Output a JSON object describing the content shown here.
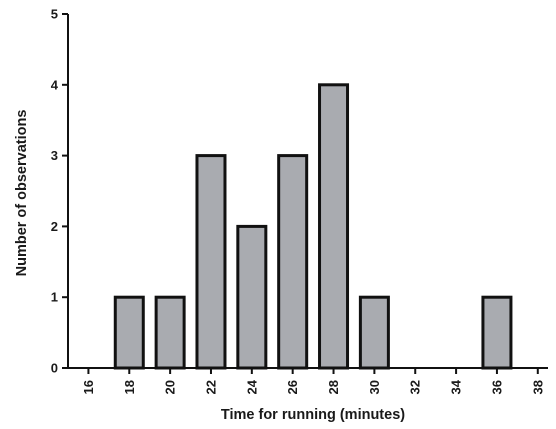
{
  "chart_data": {
    "type": "bar",
    "title": "",
    "xlabel": "Time for running (minutes)",
    "ylabel": "Number of observations",
    "x_ticks": [
      "16",
      "18",
      "20",
      "22",
      "24",
      "26",
      "28",
      "30",
      "32",
      "34",
      "36",
      "38"
    ],
    "y_ticks": [
      "0",
      "1",
      "2",
      "3",
      "4",
      "5"
    ],
    "xlim": [
      15,
      38.5
    ],
    "ylim": [
      0,
      5
    ],
    "grid": false,
    "categories": [
      "18",
      "20",
      "22",
      "24",
      "26",
      "28",
      "30",
      "36"
    ],
    "x": [
      18,
      20,
      22,
      24,
      26,
      28,
      30,
      36
    ],
    "values": [
      1,
      1,
      3,
      2,
      3,
      4,
      1,
      1
    ],
    "bar_color": "#a9abb0",
    "bar_edge_color": "#111111"
  }
}
